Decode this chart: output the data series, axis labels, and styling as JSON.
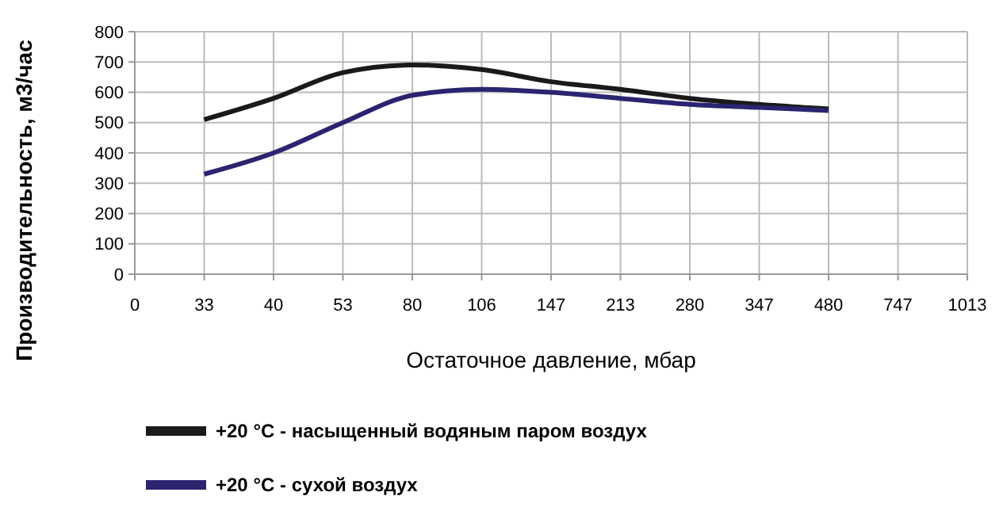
{
  "chart_data": {
    "type": "line",
    "xlabel": "Остаточное давление, мбар",
    "ylabel": "Производительность, м3/час",
    "categories": [
      "0",
      "33",
      "40",
      "53",
      "80",
      "106",
      "147",
      "213",
      "280",
      "347",
      "480",
      "747",
      "1013"
    ],
    "series": [
      {
        "name": "+20 °C - насыщенный водяным паром воздух",
        "color": "#1a1a1a",
        "values": [
          null,
          510,
          580,
          665,
          690,
          675,
          635,
          610,
          580,
          560,
          545,
          null,
          null
        ]
      },
      {
        "name": "+20 °C - сухой воздух",
        "color": "#2b2470",
        "values": [
          null,
          330,
          400,
          500,
          590,
          610,
          600,
          580,
          560,
          550,
          540,
          null,
          null
        ]
      }
    ],
    "ylim": [
      0,
      800
    ],
    "yticks": [
      0,
      100,
      200,
      300,
      400,
      500,
      600,
      700,
      800
    ],
    "grid": true,
    "legend": "bottom",
    "marker": "none",
    "line_style": "solid"
  }
}
